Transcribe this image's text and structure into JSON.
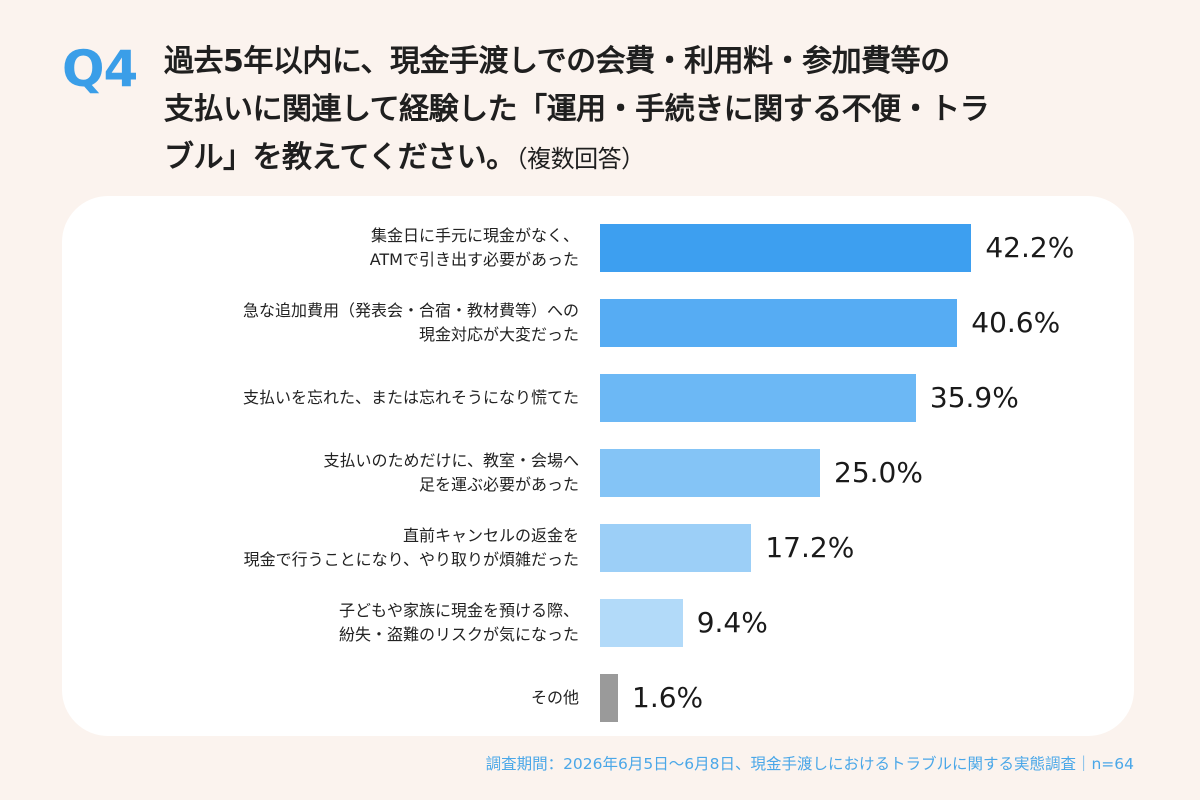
{
  "header": {
    "qnum": "Q4",
    "title_line1": "過去5年以内に、現金手渡しでの会費・利用料・参加費等の",
    "title_line2": "支払いに関連して経験した「運用・手続きに関する不便・トラ",
    "title_line3": "ブル」を教えてください。",
    "title_note": "（複数回答）"
  },
  "footer": {
    "source": "調査期間：2026年6月5日～6月8日、現金手渡しにおけるトラブルに関する実態調査｜n=64"
  },
  "chart_data": {
    "type": "bar",
    "orientation": "horizontal",
    "unit": "%",
    "xlim": [
      0,
      50
    ],
    "grid": false,
    "categories": [
      [
        "集金日に手元に現金がなく、",
        "ATMで引き出す必要があった"
      ],
      [
        "急な追加費用（発表会・合宿・教材費等）への",
        "現金対応が大変だった"
      ],
      [
        "支払いを忘れた、または忘れそうになり慌てた"
      ],
      [
        "支払いのためだけに、教室・会場へ",
        "足を運ぶ必要があった"
      ],
      [
        "直前キャンセルの返金を",
        "現金で行うことになり、やり取りが煩雑だった"
      ],
      [
        "子どもや家族に現金を預ける際、",
        "紛失・盗難のリスクが気になった"
      ],
      [
        "その他"
      ]
    ],
    "values": [
      42.2,
      40.6,
      35.9,
      25.0,
      17.2,
      9.4,
      1.6
    ],
    "value_labels": [
      "42.2%",
      "40.6%",
      "35.9%",
      "25.0%",
      "17.2%",
      "9.4%",
      "1.6%"
    ],
    "colors": [
      "#3d9ff0",
      "#56acf3",
      "#6cb8f5",
      "#84c4f6",
      "#9ccff7",
      "#b2daf9",
      "#9a9a9a"
    ]
  }
}
